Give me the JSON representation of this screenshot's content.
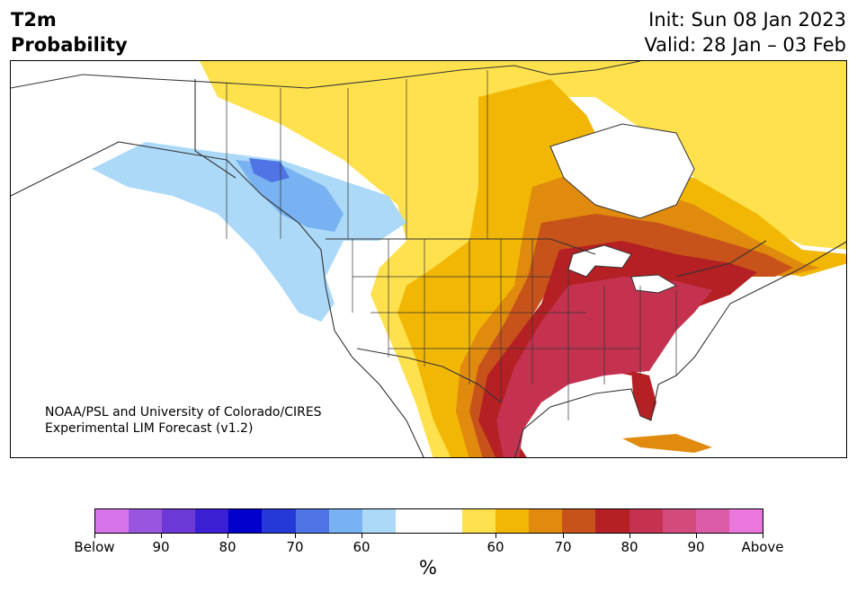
{
  "header": {
    "title_line1": "T2m",
    "title_line2": "Probability",
    "init": "Init: Sun 08 Jan 2023",
    "valid": "Valid: 28 Jan – 03 Feb"
  },
  "credit": {
    "line1": "NOAA/PSL and University of Colorado/CIRES",
    "line2": "Experimental LIM Forecast (v1.2)"
  },
  "colors": {
    "land": "#ffffff",
    "border": "#333333",
    "above_60": "#ffe14d",
    "above_65": "#f2b705",
    "above_70": "#e08a0e",
    "above_75": "#c8531a",
    "above_80": "#b42023",
    "above_85": "#c43250",
    "below_60": "#acd9f8",
    "below_65": "#78b2f2",
    "below_70": "#4e74e6"
  },
  "colorbar": {
    "swatches": [
      "#d774ec",
      "#9a55e0",
      "#6c38d6",
      "#3a1fd4",
      "#0000cc",
      "#2538d8",
      "#4e74e6",
      "#78b2f2",
      "#acd9f8",
      "#ffffff",
      "#ffffff",
      "#ffe14d",
      "#f2b705",
      "#e08a0e",
      "#c8531a",
      "#b42023",
      "#c43250",
      "#d34a7c",
      "#dc5ca8",
      "#ea78dc"
    ],
    "tick_below": "Below",
    "tick_b90": "90",
    "tick_b80": "80",
    "tick_b70": "70",
    "tick_b60": "60",
    "tick_a60": "60",
    "tick_a70": "70",
    "tick_a80": "80",
    "tick_a90": "90",
    "tick_above": "Above",
    "unit": "%"
  }
}
